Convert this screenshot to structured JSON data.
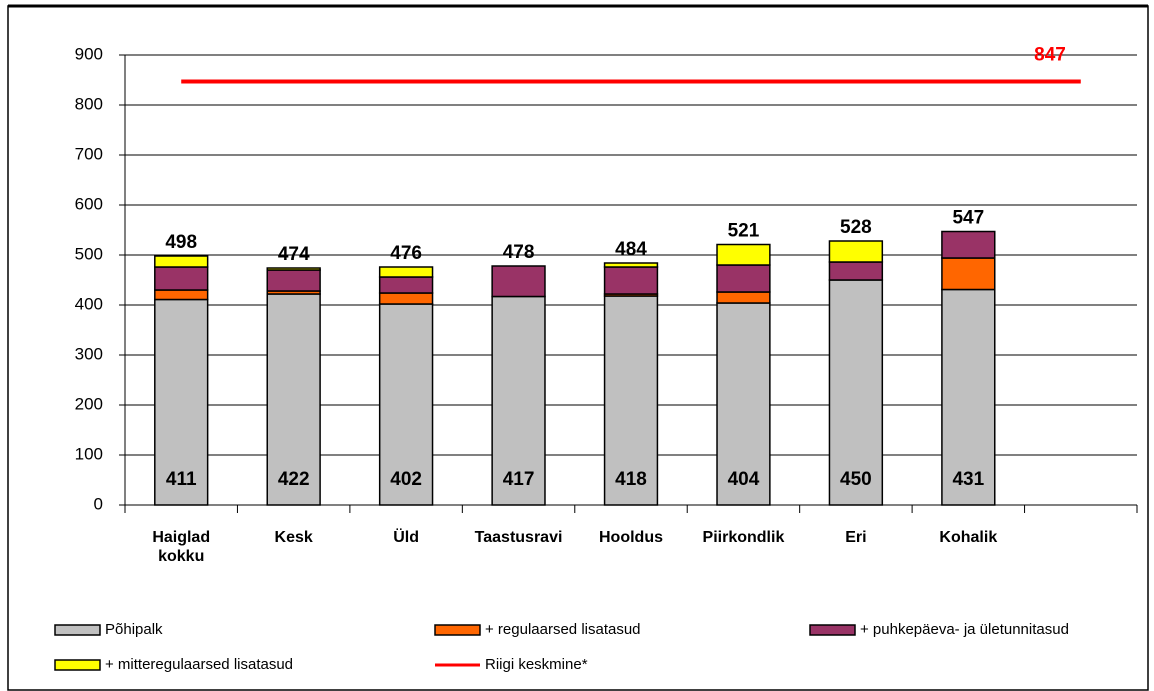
{
  "chart_data": {
    "type": "stacked_bar",
    "categories": [
      "Haiglad kokku",
      "Kesk",
      "Üld",
      "Taastusravi",
      "Hooldus",
      "Piirkondlik",
      "Eri",
      "Kohalik",
      null
    ],
    "series": [
      {
        "name": "Põhipalk",
        "color": "#c0c0c0",
        "values": [
          411,
          422,
          402,
          417,
          418,
          404,
          450,
          431,
          null
        ]
      },
      {
        "name": "+ regulaarsed lisatasud",
        "color": "#ff6600",
        "values": [
          19,
          6,
          22,
          0,
          4,
          22,
          0,
          63,
          null
        ]
      },
      {
        "name": "+ puhkepäeva- ja ületunnitasud",
        "color": "#993366",
        "values": [
          46,
          42,
          32,
          61,
          54,
          54,
          36,
          53,
          null
        ]
      },
      {
        "name": "+ mitteregulaarsed lisatasud",
        "color": "#ffff00",
        "values": [
          22,
          4,
          20,
          0,
          8,
          41,
          42,
          0,
          null
        ]
      }
    ],
    "totals": [
      498,
      474,
      476,
      478,
      484,
      521,
      528,
      547,
      null
    ],
    "reference_line": {
      "name": "Riigi keskmine*",
      "value": 847,
      "color": "#ff0000"
    },
    "ylim": [
      0,
      900
    ],
    "yticks": [
      0,
      100,
      200,
      300,
      400,
      500,
      600,
      700,
      800,
      900
    ],
    "grid": true
  }
}
